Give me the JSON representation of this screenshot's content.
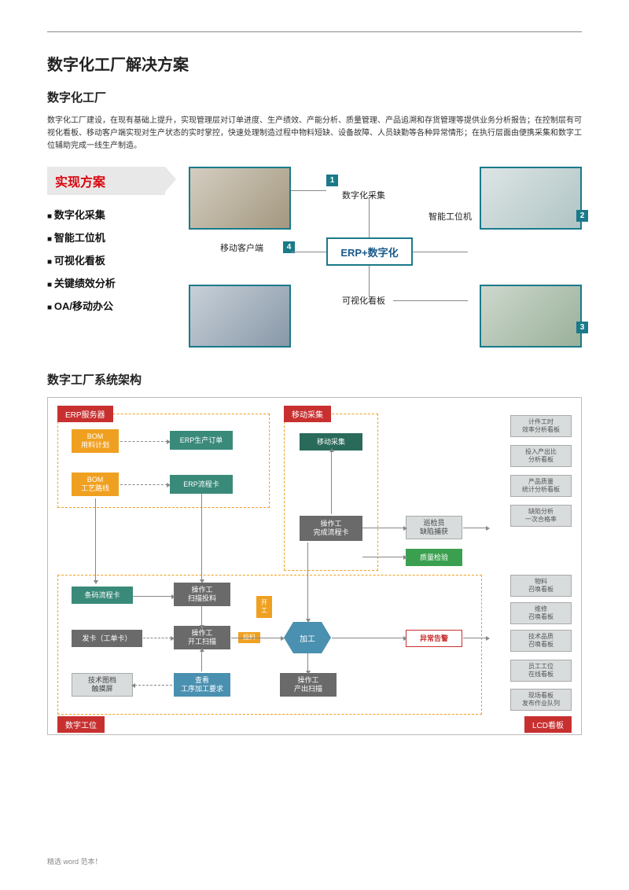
{
  "title": "数字化工厂解决方案",
  "section1_heading": "数字化工厂",
  "intro": "数字化工厂建设，在现有基础上提升，实现管理层对订单进度、生产绩效、产能分析、质量管理、产品追溯和存货管理等提供业务分析报告；在控制层有可视化看板、移动客户端实现对生产状态的实时掌控，快速处理制造过程中物料短缺、设备故障、人员缺勤等各种异常情形；在执行层面由便携采集和数字工位辅助完成一线生产制造。",
  "solution_banner": "实现方案",
  "solution_items": [
    "数字化采集",
    "智能工位机",
    "可视化看板",
    "关键绩效分析",
    "OA/移动办公"
  ],
  "d1": {
    "center": "ERP+数字化",
    "label1": "数字化采集",
    "label2": "智能工位机",
    "label3": "可视化看板",
    "label4": "移动客户端",
    "n1": "1",
    "n2": "2",
    "n3": "3",
    "n4": "4"
  },
  "section2_heading": "数字工厂系统架构",
  "d2": {
    "region_labels": {
      "erp": "ERP服务器",
      "mobile": "移动采集",
      "station": "数字工位",
      "lcd": "LCD看板"
    },
    "erp": {
      "bom1": "BOM\n用料计划",
      "order": "ERP生产订单",
      "bom2": "BOM\n工艺路线",
      "card": "ERP流程卡"
    },
    "mobile_collect": "移动采集",
    "op_complete": "操作工\n完成流程卡",
    "inspector": "巡检员\n缺陷捕获",
    "qc": "质量检验",
    "station": {
      "barcode": "条码流程卡",
      "scan_feed": "操作工\n扫描投料",
      "issue": "发卡（工单卡）",
      "start_scan": "操作工\n开工扫描",
      "tech_doc": "技术图档\n触摸屏",
      "view_req": "查看\n工序加工要求",
      "process": "加工",
      "out_scan": "操作工\n产出扫描",
      "feed_label": "投料",
      "start_label": "开工"
    },
    "alert": "异常告警",
    "side": [
      "计件工时\n效率分析看板",
      "投入产出比\n分析看板",
      "产品质量\n统计分析看板",
      "缺陷分析\n一次合格率",
      "物料\n召唤看板",
      "维修\n召唤看板",
      "技术品质\n召唤看板",
      "员工工位\n在线看板",
      "现场看板\n发布作业队列"
    ]
  },
  "footer": "精选 word 范本！",
  "colors": {
    "primary_red": "#c83030",
    "teal": "#3a8a7a",
    "orange": "#f0a020",
    "blue": "#4a90b0",
    "green": "#3aa050",
    "gray": "#6a6a6a",
    "border_teal": "#1a7a8a"
  }
}
